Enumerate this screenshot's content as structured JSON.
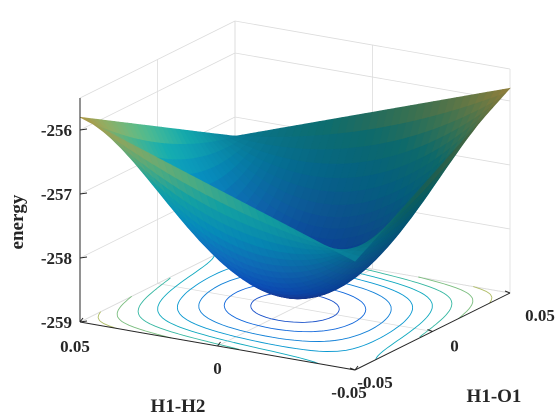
{
  "chart_data": {
    "type": "surface",
    "xlabel": "H1-H2",
    "ylabel": "H1-O1",
    "zlabel": "energy",
    "x_ticks": [
      "0.05",
      "0",
      "-0.05"
    ],
    "y_ticks": [
      "-0.05",
      "0",
      "0.05"
    ],
    "z_ticks": [
      "-256",
      "-257",
      "-258",
      "-259"
    ],
    "xlim": [
      -0.05,
      0.05
    ],
    "ylim": [
      -0.05,
      0.05
    ],
    "zlim": [
      -259,
      -255.5
    ],
    "grid": true,
    "colormap": "parula",
    "contour_projection": true,
    "surface": {
      "center": [
        0,
        0
      ],
      "min_energy": -258.8,
      "corner_energies": {
        "x_plus_y_minus": -255.8,
        "x_minus_y_minus": -257.3,
        "x_plus_y_plus": -257.3,
        "x_minus_y_plus": -255.8
      }
    }
  },
  "colors": {
    "axis": "#262626",
    "grid": "#dcdcdc",
    "colormap_low": "#352a87",
    "colormap_mid": "#13bdb2",
    "colormap_high": "#f9fb0e"
  }
}
